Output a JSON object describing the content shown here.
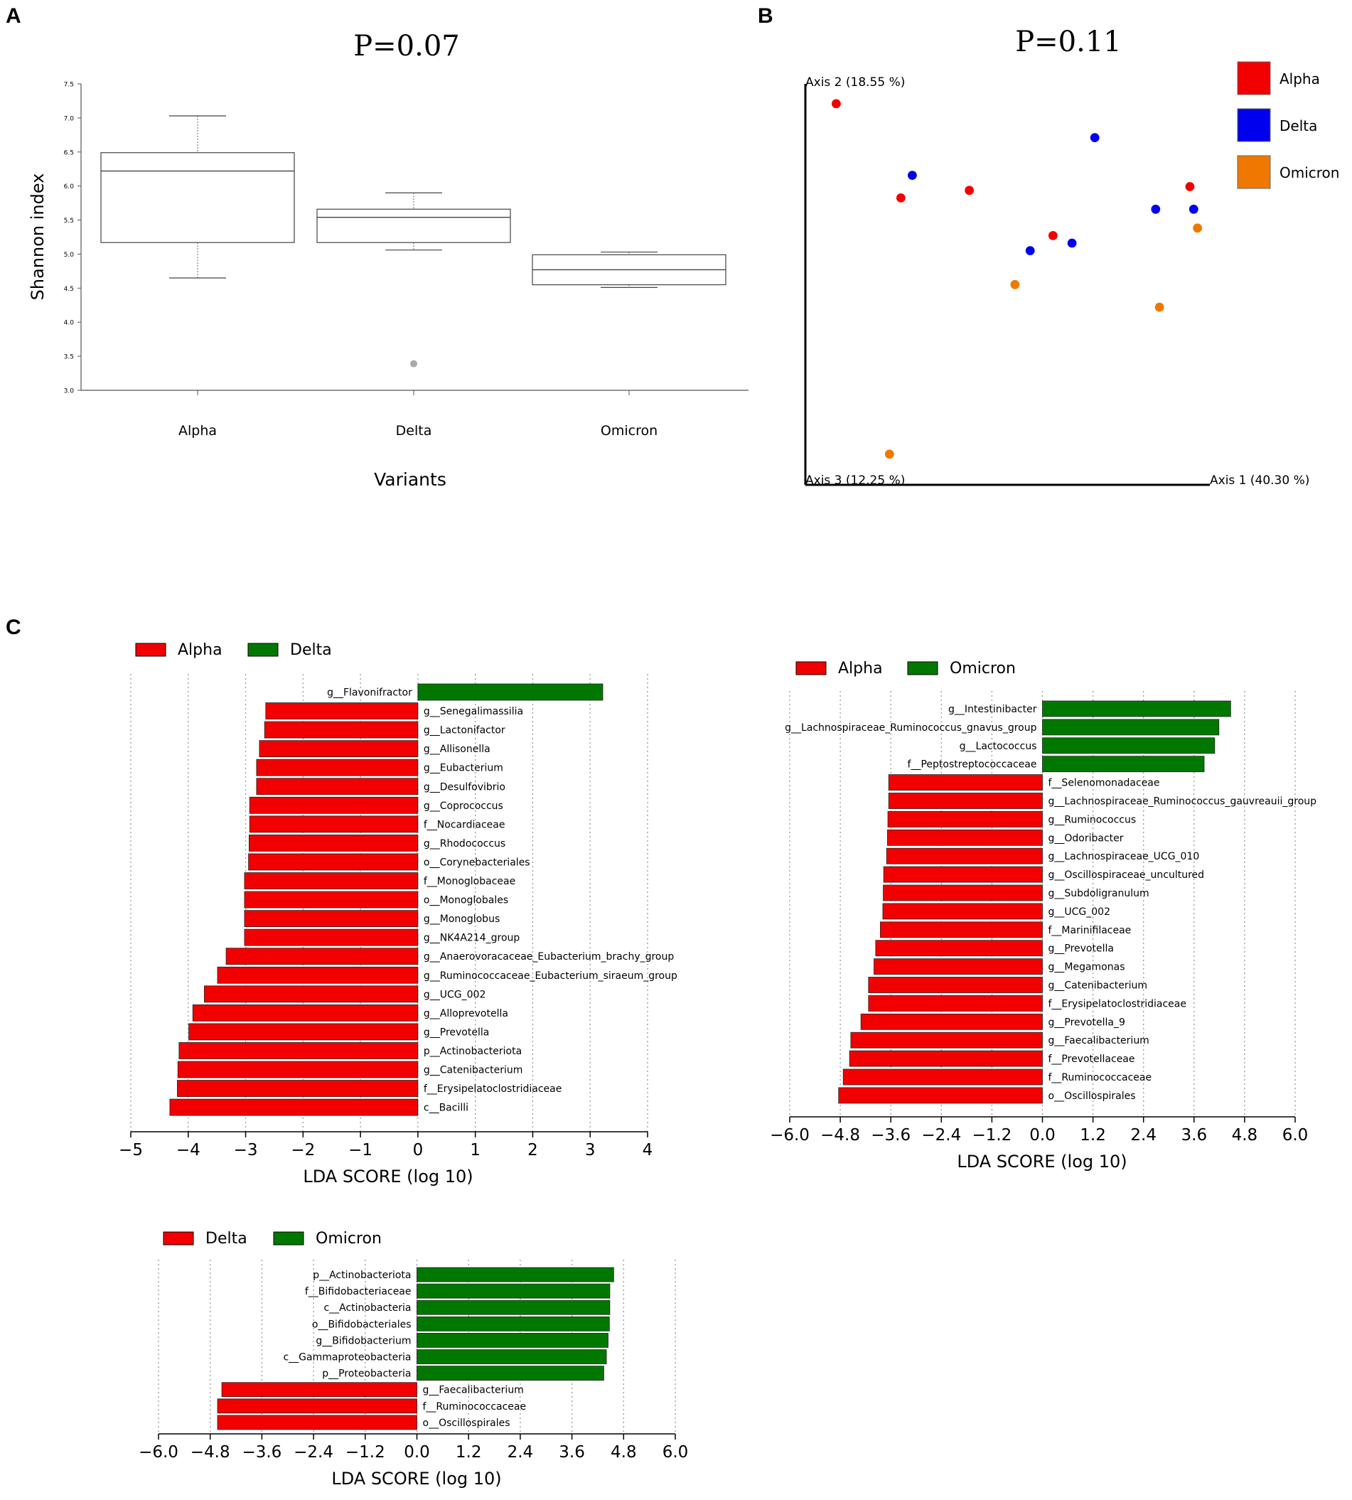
{
  "panel_labels": {
    "a": "A",
    "b": "B",
    "c": "C"
  },
  "colors": {
    "red": "#f20000",
    "green": "#007800",
    "blue": "#0000ee",
    "orange": "#f07800",
    "grid": "#999999"
  },
  "chart_data": [
    {
      "id": "boxplot",
      "type": "box",
      "title": "P=0.07",
      "xlabel": "Variants",
      "ylabel": "Shannon index",
      "ylim": [
        3.0,
        7.5
      ],
      "yticks": [
        "3.0",
        "3.5",
        "4.0",
        "4.5",
        "5.0",
        "5.5",
        "6.0",
        "6.5",
        "7.0",
        "7.5"
      ],
      "categories": [
        "Alpha",
        "Delta",
        "Omicron"
      ],
      "boxes": [
        {
          "name": "Alpha",
          "min": 4.65,
          "q1": 5.17,
          "median": 6.22,
          "q3": 6.49,
          "max": 7.03,
          "outliers": []
        },
        {
          "name": "Delta",
          "min": 5.06,
          "q1": 5.17,
          "median": 5.54,
          "q3": 5.66,
          "max": 5.9,
          "outliers": [
            3.39
          ]
        },
        {
          "name": "Omicron",
          "min": 4.51,
          "q1": 4.55,
          "median": 4.77,
          "q3": 4.99,
          "max": 5.03,
          "outliers": []
        }
      ]
    },
    {
      "id": "pcoa",
      "type": "scatter",
      "title": "P=0.11",
      "axis1_label": "Axis 1 (40.30 %)",
      "axis2_label": "Axis 2 (18.55 %)",
      "axis3_label": "Axis 3 (12.25 %)",
      "legend": [
        {
          "name": "Alpha",
          "color": "#f20000"
        },
        {
          "name": "Delta",
          "color": "#0000ee"
        },
        {
          "name": "Omicron",
          "color": "#f07800"
        }
      ],
      "points": [
        {
          "group": "Alpha",
          "x": 0.04,
          "y": 0.97
        },
        {
          "group": "Alpha",
          "x": 0.21,
          "y": 0.72
        },
        {
          "group": "Alpha",
          "x": 0.39,
          "y": 0.74
        },
        {
          "group": "Alpha",
          "x": 0.61,
          "y": 0.62
        },
        {
          "group": "Alpha",
          "x": 0.97,
          "y": 0.75
        },
        {
          "group": "Delta",
          "x": 0.24,
          "y": 0.78
        },
        {
          "group": "Delta",
          "x": 0.72,
          "y": 0.88
        },
        {
          "group": "Delta",
          "x": 0.88,
          "y": 0.69
        },
        {
          "group": "Delta",
          "x": 0.98,
          "y": 0.69
        },
        {
          "group": "Delta",
          "x": 0.55,
          "y": 0.58
        },
        {
          "group": "Delta",
          "x": 0.66,
          "y": 0.6
        },
        {
          "group": "Omicron",
          "x": 0.51,
          "y": 0.49
        },
        {
          "group": "Omicron",
          "x": 0.89,
          "y": 0.43
        },
        {
          "group": "Omicron",
          "x": 0.99,
          "y": 0.64
        },
        {
          "group": "Omicron",
          "x": 0.18,
          "y": 0.04
        }
      ]
    },
    {
      "id": "lefse-alpha-delta",
      "type": "bar",
      "orientation": "horizontal",
      "xlabel": "LDA SCORE (log 10)",
      "xlim": [
        -5,
        4
      ],
      "xticks": [
        -5,
        -4,
        -3,
        -2,
        -1,
        0,
        1,
        2,
        3,
        4
      ],
      "tick_labels": [
        "−5",
        "−4",
        "−3",
        "−2",
        "−1",
        "0",
        "1",
        "2",
        "3",
        "4"
      ],
      "series": [
        {
          "name": "Alpha",
          "color": "#f20000"
        },
        {
          "name": "Delta",
          "color": "#007800"
        }
      ],
      "bars": [
        {
          "label": "g__Flavonifractor",
          "value": 3.22,
          "group": "Delta"
        },
        {
          "label": "g__Senegalimassilia",
          "value": -2.65,
          "group": "Alpha"
        },
        {
          "label": "g__Lactonifactor",
          "value": -2.67,
          "group": "Alpha"
        },
        {
          "label": "g__Allisonella",
          "value": -2.76,
          "group": "Alpha"
        },
        {
          "label": "g__Eubacterium",
          "value": -2.81,
          "group": "Alpha"
        },
        {
          "label": "g__Desulfovibrio",
          "value": -2.81,
          "group": "Alpha"
        },
        {
          "label": "g__Coprococcus",
          "value": -2.93,
          "group": "Alpha"
        },
        {
          "label": "f__Nocardiaceae",
          "value": -2.93,
          "group": "Alpha"
        },
        {
          "label": "g__Rhodococcus",
          "value": -2.94,
          "group": "Alpha"
        },
        {
          "label": "o__Corynebacteriales",
          "value": -2.95,
          "group": "Alpha"
        },
        {
          "label": "f__Monoglobaceae",
          "value": -3.02,
          "group": "Alpha"
        },
        {
          "label": "o__Monoglobales",
          "value": -3.02,
          "group": "Alpha"
        },
        {
          "label": "g__Monoglobus",
          "value": -3.02,
          "group": "Alpha"
        },
        {
          "label": "g__NK4A214_group",
          "value": -3.02,
          "group": "Alpha"
        },
        {
          "label": "g__Anaerovoracaceae_Eubacterium_brachy_group",
          "value": -3.34,
          "group": "Alpha"
        },
        {
          "label": "g__Ruminococcaceae_Eubacterium_siraeum_group",
          "value": -3.49,
          "group": "Alpha"
        },
        {
          "label": "g__UCG_002",
          "value": -3.72,
          "group": "Alpha"
        },
        {
          "label": "g__Alloprevotella",
          "value": -3.92,
          "group": "Alpha"
        },
        {
          "label": "g__Prevotella",
          "value": -3.99,
          "group": "Alpha"
        },
        {
          "label": "p__Actinobacteriota",
          "value": -4.16,
          "group": "Alpha"
        },
        {
          "label": "g__Catenibacterium",
          "value": -4.18,
          "group": "Alpha"
        },
        {
          "label": "f__Erysipelatoclostridiaceae",
          "value": -4.19,
          "group": "Alpha"
        },
        {
          "label": "c__Bacilli",
          "value": -4.32,
          "group": "Alpha"
        }
      ]
    },
    {
      "id": "lefse-alpha-omicron",
      "type": "bar",
      "orientation": "horizontal",
      "xlabel": "LDA SCORE (log 10)",
      "xlim": [
        -6,
        6
      ],
      "xticks": [
        -6,
        -4.8,
        -3.6,
        -2.4,
        -1.2,
        0,
        1.2,
        2.4,
        3.6,
        4.8,
        6
      ],
      "tick_labels": [
        "−6.0",
        "−4.8",
        "−3.6",
        "−2.4",
        "−1.2",
        "0.0",
        "1.2",
        "2.4",
        "3.6",
        "4.8",
        "6.0"
      ],
      "series": [
        {
          "name": "Alpha",
          "color": "#f20000"
        },
        {
          "name": "Omicron",
          "color": "#007800"
        }
      ],
      "bars": [
        {
          "label": "g__Intestinibacter",
          "value": 4.47,
          "group": "Omicron"
        },
        {
          "label": "g__Lachnospiraceae_Ruminococcus_gnavus_group",
          "value": 4.19,
          "group": "Omicron"
        },
        {
          "label": "g__Lactococcus",
          "value": 4.09,
          "group": "Omicron"
        },
        {
          "label": "f__Peptostreptococcaceae",
          "value": 3.84,
          "group": "Omicron"
        },
        {
          "label": "f__Selenomonadaceae",
          "value": -3.65,
          "group": "Alpha"
        },
        {
          "label": "g__Lachnospiraceae_Ruminococcus_gauvreauii_group",
          "value": -3.65,
          "group": "Alpha"
        },
        {
          "label": "g__Ruminococcus",
          "value": -3.67,
          "group": "Alpha"
        },
        {
          "label": "g__Odoribacter",
          "value": -3.68,
          "group": "Alpha"
        },
        {
          "label": "g__Lachnospiraceae_UCG_010",
          "value": -3.7,
          "group": "Alpha"
        },
        {
          "label": "g__Oscillospiraceae_uncultured",
          "value": -3.77,
          "group": "Alpha"
        },
        {
          "label": "g__Subdoligranulum",
          "value": -3.78,
          "group": "Alpha"
        },
        {
          "label": "g__UCG_002",
          "value": -3.79,
          "group": "Alpha"
        },
        {
          "label": "f__Marinifilaceae",
          "value": -3.85,
          "group": "Alpha"
        },
        {
          "label": "g__Prevotella",
          "value": -3.96,
          "group": "Alpha"
        },
        {
          "label": "g__Megamonas",
          "value": -4.0,
          "group": "Alpha"
        },
        {
          "label": "g__Catenibacterium",
          "value": -4.13,
          "group": "Alpha"
        },
        {
          "label": "f__Erysipelatoclostridiaceae",
          "value": -4.13,
          "group": "Alpha"
        },
        {
          "label": "g__Prevotella_9",
          "value": -4.31,
          "group": "Alpha"
        },
        {
          "label": "g__Faecalibacterium",
          "value": -4.55,
          "group": "Alpha"
        },
        {
          "label": "f__Prevotellaceae",
          "value": -4.58,
          "group": "Alpha"
        },
        {
          "label": "f__Ruminococcaceae",
          "value": -4.73,
          "group": "Alpha"
        },
        {
          "label": "o__Oscillospirales",
          "value": -4.84,
          "group": "Alpha"
        }
      ]
    },
    {
      "id": "lefse-delta-omicron",
      "type": "bar",
      "orientation": "horizontal",
      "xlabel": "LDA SCORE (log 10)",
      "xlim": [
        -6,
        6
      ],
      "xticks": [
        -6,
        -4.8,
        -3.6,
        -2.4,
        -1.2,
        0,
        1.2,
        2.4,
        3.6,
        4.8,
        6
      ],
      "tick_labels": [
        "−6.0",
        "−4.8",
        "−3.6",
        "−2.4",
        "−1.2",
        "0.0",
        "1.2",
        "2.4",
        "3.6",
        "4.8",
        "6.0"
      ],
      "series": [
        {
          "name": "Delta",
          "color": "#f20000"
        },
        {
          "name": "Omicron",
          "color": "#007800"
        }
      ],
      "bars": [
        {
          "label": "p__Actinobacteriota",
          "value": 4.57,
          "group": "Omicron"
        },
        {
          "label": "f__Bifidobacteriaceae",
          "value": 4.48,
          "group": "Omicron"
        },
        {
          "label": "c__Actinobacteria",
          "value": 4.48,
          "group": "Omicron"
        },
        {
          "label": "o__Bifidobacteriales",
          "value": 4.47,
          "group": "Omicron"
        },
        {
          "label": "g__Bifidobacterium",
          "value": 4.44,
          "group": "Omicron"
        },
        {
          "label": "c__Gammaproteobacteria",
          "value": 4.4,
          "group": "Omicron"
        },
        {
          "label": "p__Proteobacteria",
          "value": 4.34,
          "group": "Omicron"
        },
        {
          "label": "g__Faecalibacterium",
          "value": -4.53,
          "group": "Delta"
        },
        {
          "label": "f__Ruminococcaceae",
          "value": -4.63,
          "group": "Delta"
        },
        {
          "label": "o__Oscillospirales",
          "value": -4.63,
          "group": "Delta"
        }
      ]
    }
  ]
}
